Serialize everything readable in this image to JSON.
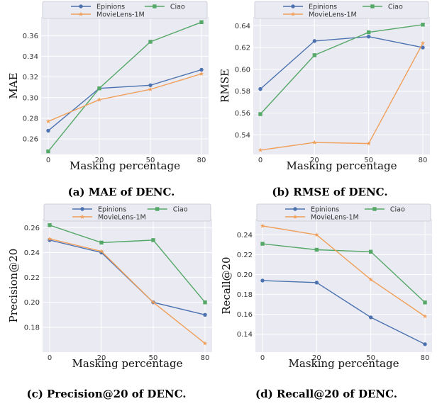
{
  "chart_data": [
    {
      "type": "line",
      "caption": "(a) MAE of DENC.",
      "xlabel": "Masking percentage",
      "ylabel": "MAE",
      "categories": [
        "0",
        "20",
        "50",
        "80"
      ],
      "ylim": [
        0.245,
        0.378
      ],
      "yticks": [
        0.26,
        0.28,
        0.3,
        0.32,
        0.34,
        0.36
      ],
      "ytick_labels": [
        "0.26",
        "0.28",
        "0.30",
        "0.32",
        "0.34",
        "0.36"
      ],
      "grid": true,
      "legend_placement": "top",
      "series": [
        {
          "name": "Epinions",
          "values": [
            0.268,
            0.309,
            0.312,
            0.327
          ]
        },
        {
          "name": "Ciao",
          "values": [
            0.248,
            0.309,
            0.354,
            0.373
          ]
        },
        {
          "name": "MovieLens-1M",
          "values": [
            0.277,
            0.298,
            0.308,
            0.323
          ]
        }
      ]
    },
    {
      "type": "line",
      "caption": "(b) RMSE of DENC.",
      "xlabel": "Masking percentage",
      "ylabel": "RMSE",
      "categories": [
        "0",
        "20",
        "50",
        "80"
      ],
      "ylim": [
        0.522,
        0.648
      ],
      "yticks": [
        0.54,
        0.56,
        0.58,
        0.6,
        0.62,
        0.64
      ],
      "ytick_labels": [
        "0.54",
        "0.56",
        "0.58",
        "0.60",
        "0.62",
        "0.64"
      ],
      "grid": true,
      "legend_placement": "top",
      "series": [
        {
          "name": "Epinions",
          "values": [
            0.582,
            0.626,
            0.63,
            0.62
          ]
        },
        {
          "name": "Ciao",
          "values": [
            0.559,
            0.613,
            0.634,
            0.641
          ]
        },
        {
          "name": "MovieLens-1M",
          "values": [
            0.526,
            0.533,
            0.532,
            0.624
          ]
        }
      ]
    },
    {
      "type": "line",
      "caption": "(c) Precision@20 of DENC.",
      "xlabel": "Masking percentage",
      "ylabel": "Precision@20",
      "categories": [
        "0",
        "20",
        "50",
        "80"
      ],
      "ylim": [
        0.16,
        0.267
      ],
      "yticks": [
        0.18,
        0.2,
        0.22,
        0.24,
        0.26
      ],
      "ytick_labels": [
        "0.18",
        "0.20",
        "0.22",
        "0.24",
        "0.26"
      ],
      "grid": true,
      "legend_placement": "top",
      "series": [
        {
          "name": "Epinions",
          "values": [
            0.25,
            0.24,
            0.2,
            0.19
          ]
        },
        {
          "name": "Ciao",
          "values": [
            0.262,
            0.248,
            0.25,
            0.2
          ]
        },
        {
          "name": "MovieLens-1M",
          "values": [
            0.251,
            0.241,
            0.2,
            0.167
          ]
        }
      ]
    },
    {
      "type": "line",
      "caption": "(d) Recall@20 of DENC.",
      "xlabel": "Masking percentage",
      "ylabel": "Recall@20",
      "categories": [
        "0",
        "20",
        "50",
        "80"
      ],
      "ylim": [
        0.122,
        0.256
      ],
      "yticks": [
        0.14,
        0.16,
        0.18,
        0.2,
        0.22,
        0.24
      ],
      "ytick_labels": [
        "0.14",
        "0.16",
        "0.18",
        "0.20",
        "0.22",
        "0.24"
      ],
      "grid": true,
      "legend_placement": "top",
      "series": [
        {
          "name": "Epinions",
          "values": [
            0.194,
            0.192,
            0.157,
            0.13
          ]
        },
        {
          "name": "Ciao",
          "values": [
            0.231,
            0.225,
            0.223,
            0.172
          ]
        },
        {
          "name": "MovieLens-1M",
          "values": [
            0.249,
            0.24,
            0.195,
            0.158
          ]
        }
      ]
    }
  ],
  "series_style": [
    {
      "color": "#4c72b0",
      "marker": "circle"
    },
    {
      "color": "#55a868",
      "marker": "square"
    },
    {
      "color": "#f0a05a",
      "marker": "star"
    }
  ],
  "colors": {
    "plot_background": "#eaeaf2",
    "grid": "#ffffff",
    "legend_background": "#eaeaf2"
  }
}
